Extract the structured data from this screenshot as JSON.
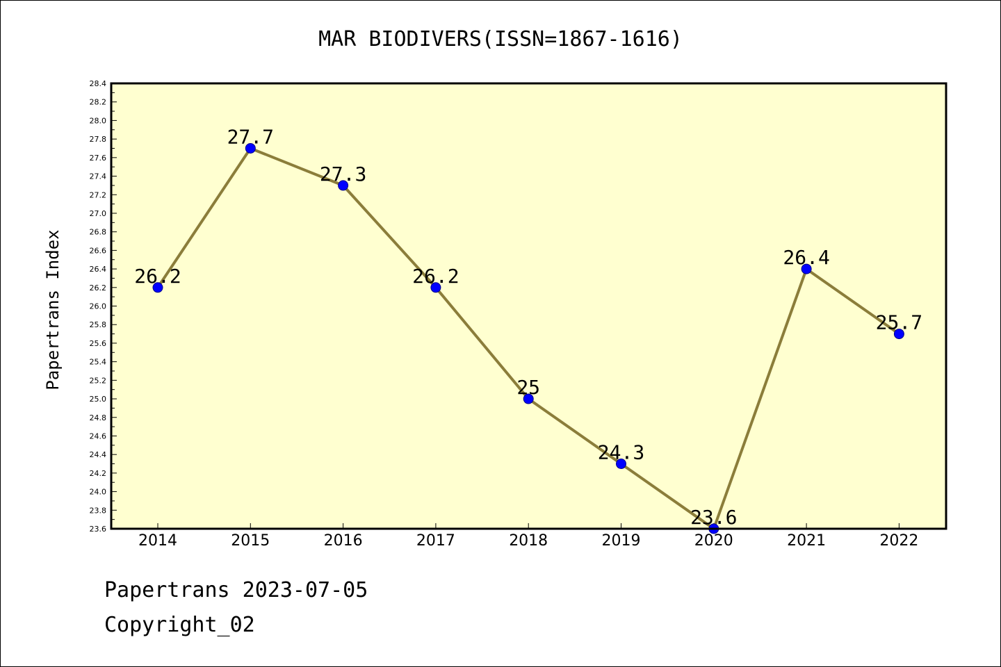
{
  "chart_data": {
    "type": "line",
    "title": "MAR BIODIVERS(ISSN=1867-1616)",
    "xlabel": "",
    "ylabel": "Papertrans Index",
    "categories": [
      "2014",
      "2015",
      "2016",
      "2017",
      "2018",
      "2019",
      "2020",
      "2021",
      "2022"
    ],
    "values": [
      26.2,
      27.7,
      27.3,
      26.2,
      25.0,
      24.3,
      23.6,
      26.4,
      25.7
    ],
    "data_labels": [
      "26.2",
      "27.7",
      "27.3",
      "26.2",
      "25",
      "24.3",
      "23.6",
      "26.4",
      "25.7"
    ],
    "ylim": [
      23.6,
      28.4
    ],
    "yticks": [
      "23.6",
      "23.8",
      "24.0",
      "24.2",
      "24.4",
      "24.6",
      "24.8",
      "25.0",
      "25.2",
      "25.4",
      "25.6",
      "25.8",
      "26.0",
      "26.2",
      "26.4",
      "26.6",
      "26.8",
      "27.0",
      "27.2",
      "27.4",
      "27.6",
      "27.8",
      "28.0",
      "28.2",
      "28.4"
    ],
    "grid": false,
    "colors": {
      "plot_background": "#ffffd0",
      "line": "#8b7d3a",
      "marker": "#0000ff",
      "marker_edge": "#00008b"
    }
  },
  "footer": {
    "line1": "Papertrans 2023-07-05",
    "line2": "Copyright_02"
  }
}
